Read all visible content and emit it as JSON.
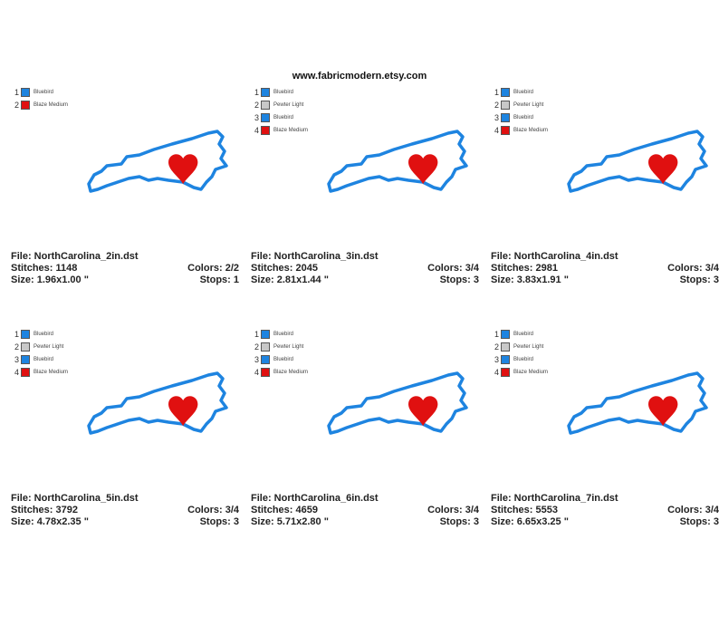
{
  "header": {
    "url": "www.fabricmodern.etsy.com"
  },
  "colors": {
    "Bluebird": "#1e84e0",
    "Pewter Light": "#c8c8c8",
    "Blaze Medium": "#e01010"
  },
  "panels": [
    {
      "file": "File: NorthCarolina_2in.dst",
      "stitches": "Stitches: 1148",
      "colors": "Colors: 2/2",
      "size": "Size: 1.96x1.00 \"",
      "stops": "Stops: 1",
      "legend": [
        {
          "num": "1",
          "name": "Bluebird"
        },
        {
          "num": "2",
          "name": "Blaze Medium"
        }
      ]
    },
    {
      "file": "File: NorthCarolina_3in.dst",
      "stitches": "Stitches: 2045",
      "colors": "Colors: 3/4",
      "size": "Size: 2.81x1.44 \"",
      "stops": "Stops: 3",
      "legend": [
        {
          "num": "1",
          "name": "Bluebird"
        },
        {
          "num": "2",
          "name": "Pewter Light"
        },
        {
          "num": "3",
          "name": "Bluebird"
        },
        {
          "num": "4",
          "name": "Blaze Medium"
        }
      ]
    },
    {
      "file": "File: NorthCarolina_4in.dst",
      "stitches": "Stitches: 2981",
      "colors": "Colors: 3/4",
      "size": "Size: 3.83x1.91 \"",
      "stops": "Stops: 3",
      "legend": [
        {
          "num": "1",
          "name": "Bluebird"
        },
        {
          "num": "2",
          "name": "Pewter Light"
        },
        {
          "num": "3",
          "name": "Bluebird"
        },
        {
          "num": "4",
          "name": "Blaze Medium"
        }
      ]
    },
    {
      "file": "File: NorthCarolina_5in.dst",
      "stitches": "Stitches: 3792",
      "colors": "Colors: 3/4",
      "size": "Size: 4.78x2.35 \"",
      "stops": "Stops: 3",
      "legend": [
        {
          "num": "1",
          "name": "Bluebird"
        },
        {
          "num": "2",
          "name": "Pewter Light"
        },
        {
          "num": "3",
          "name": "Bluebird"
        },
        {
          "num": "4",
          "name": "Blaze Medium"
        }
      ]
    },
    {
      "file": "File: NorthCarolina_6in.dst",
      "stitches": "Stitches: 4659",
      "colors": "Colors: 3/4",
      "size": "Size: 5.71x2.80 \"",
      "stops": "Stops: 3",
      "legend": [
        {
          "num": "1",
          "name": "Bluebird"
        },
        {
          "num": "2",
          "name": "Pewter Light"
        },
        {
          "num": "3",
          "name": "Bluebird"
        },
        {
          "num": "4",
          "name": "Blaze Medium"
        }
      ]
    },
    {
      "file": "File: NorthCarolina_7in.dst",
      "stitches": "Stitches: 5553",
      "colors": "Colors: 3/4",
      "size": "Size: 6.65x3.25 \"",
      "stops": "Stops: 3",
      "legend": [
        {
          "num": "1",
          "name": "Bluebird"
        },
        {
          "num": "2",
          "name": "Pewter Light"
        },
        {
          "num": "3",
          "name": "Bluebird"
        },
        {
          "num": "4",
          "name": "Blaze Medium"
        }
      ]
    }
  ]
}
